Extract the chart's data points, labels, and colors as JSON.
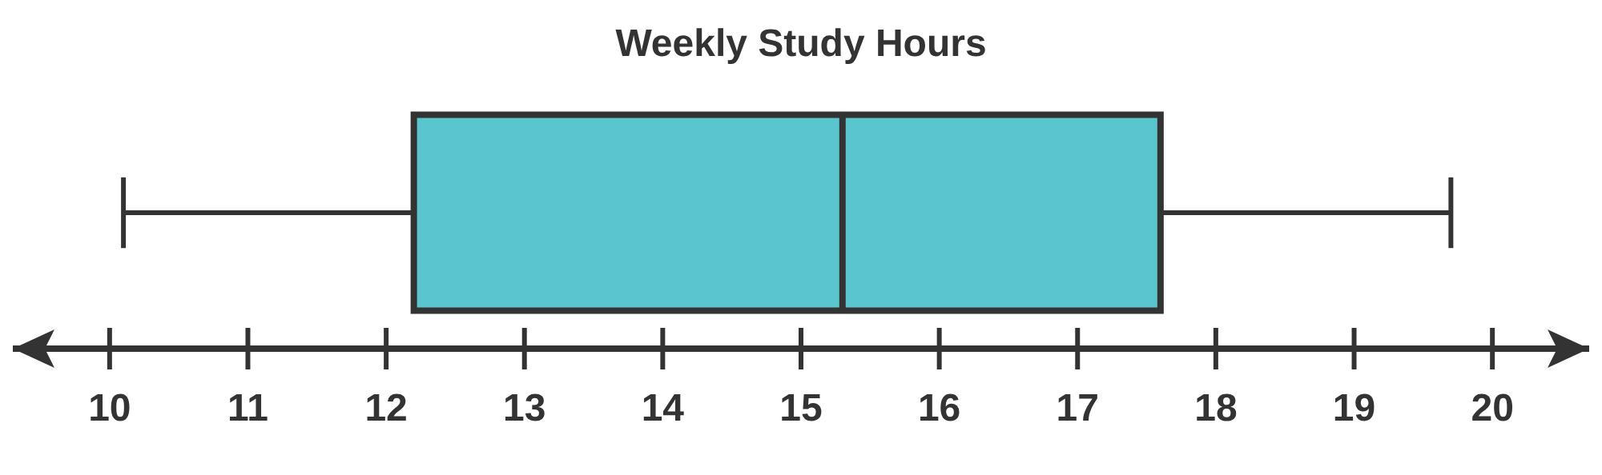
{
  "chart_data": {
    "type": "box",
    "title": "Weekly Study Hours",
    "orientation": "horizontal",
    "categories": [
      null
    ],
    "series": [
      {
        "color": "#5bc5cd",
        "boxes": [
          {
            "low": 10.1,
            "q1": 12.2,
            "median": 15.3,
            "q3": 17.6,
            "high": 19.7
          }
        ]
      }
    ],
    "xlim": [
      9.3,
      20.7
    ],
    "xticks": [
      10,
      11,
      12,
      13,
      14,
      15,
      16,
      17,
      18,
      19,
      20
    ]
  }
}
